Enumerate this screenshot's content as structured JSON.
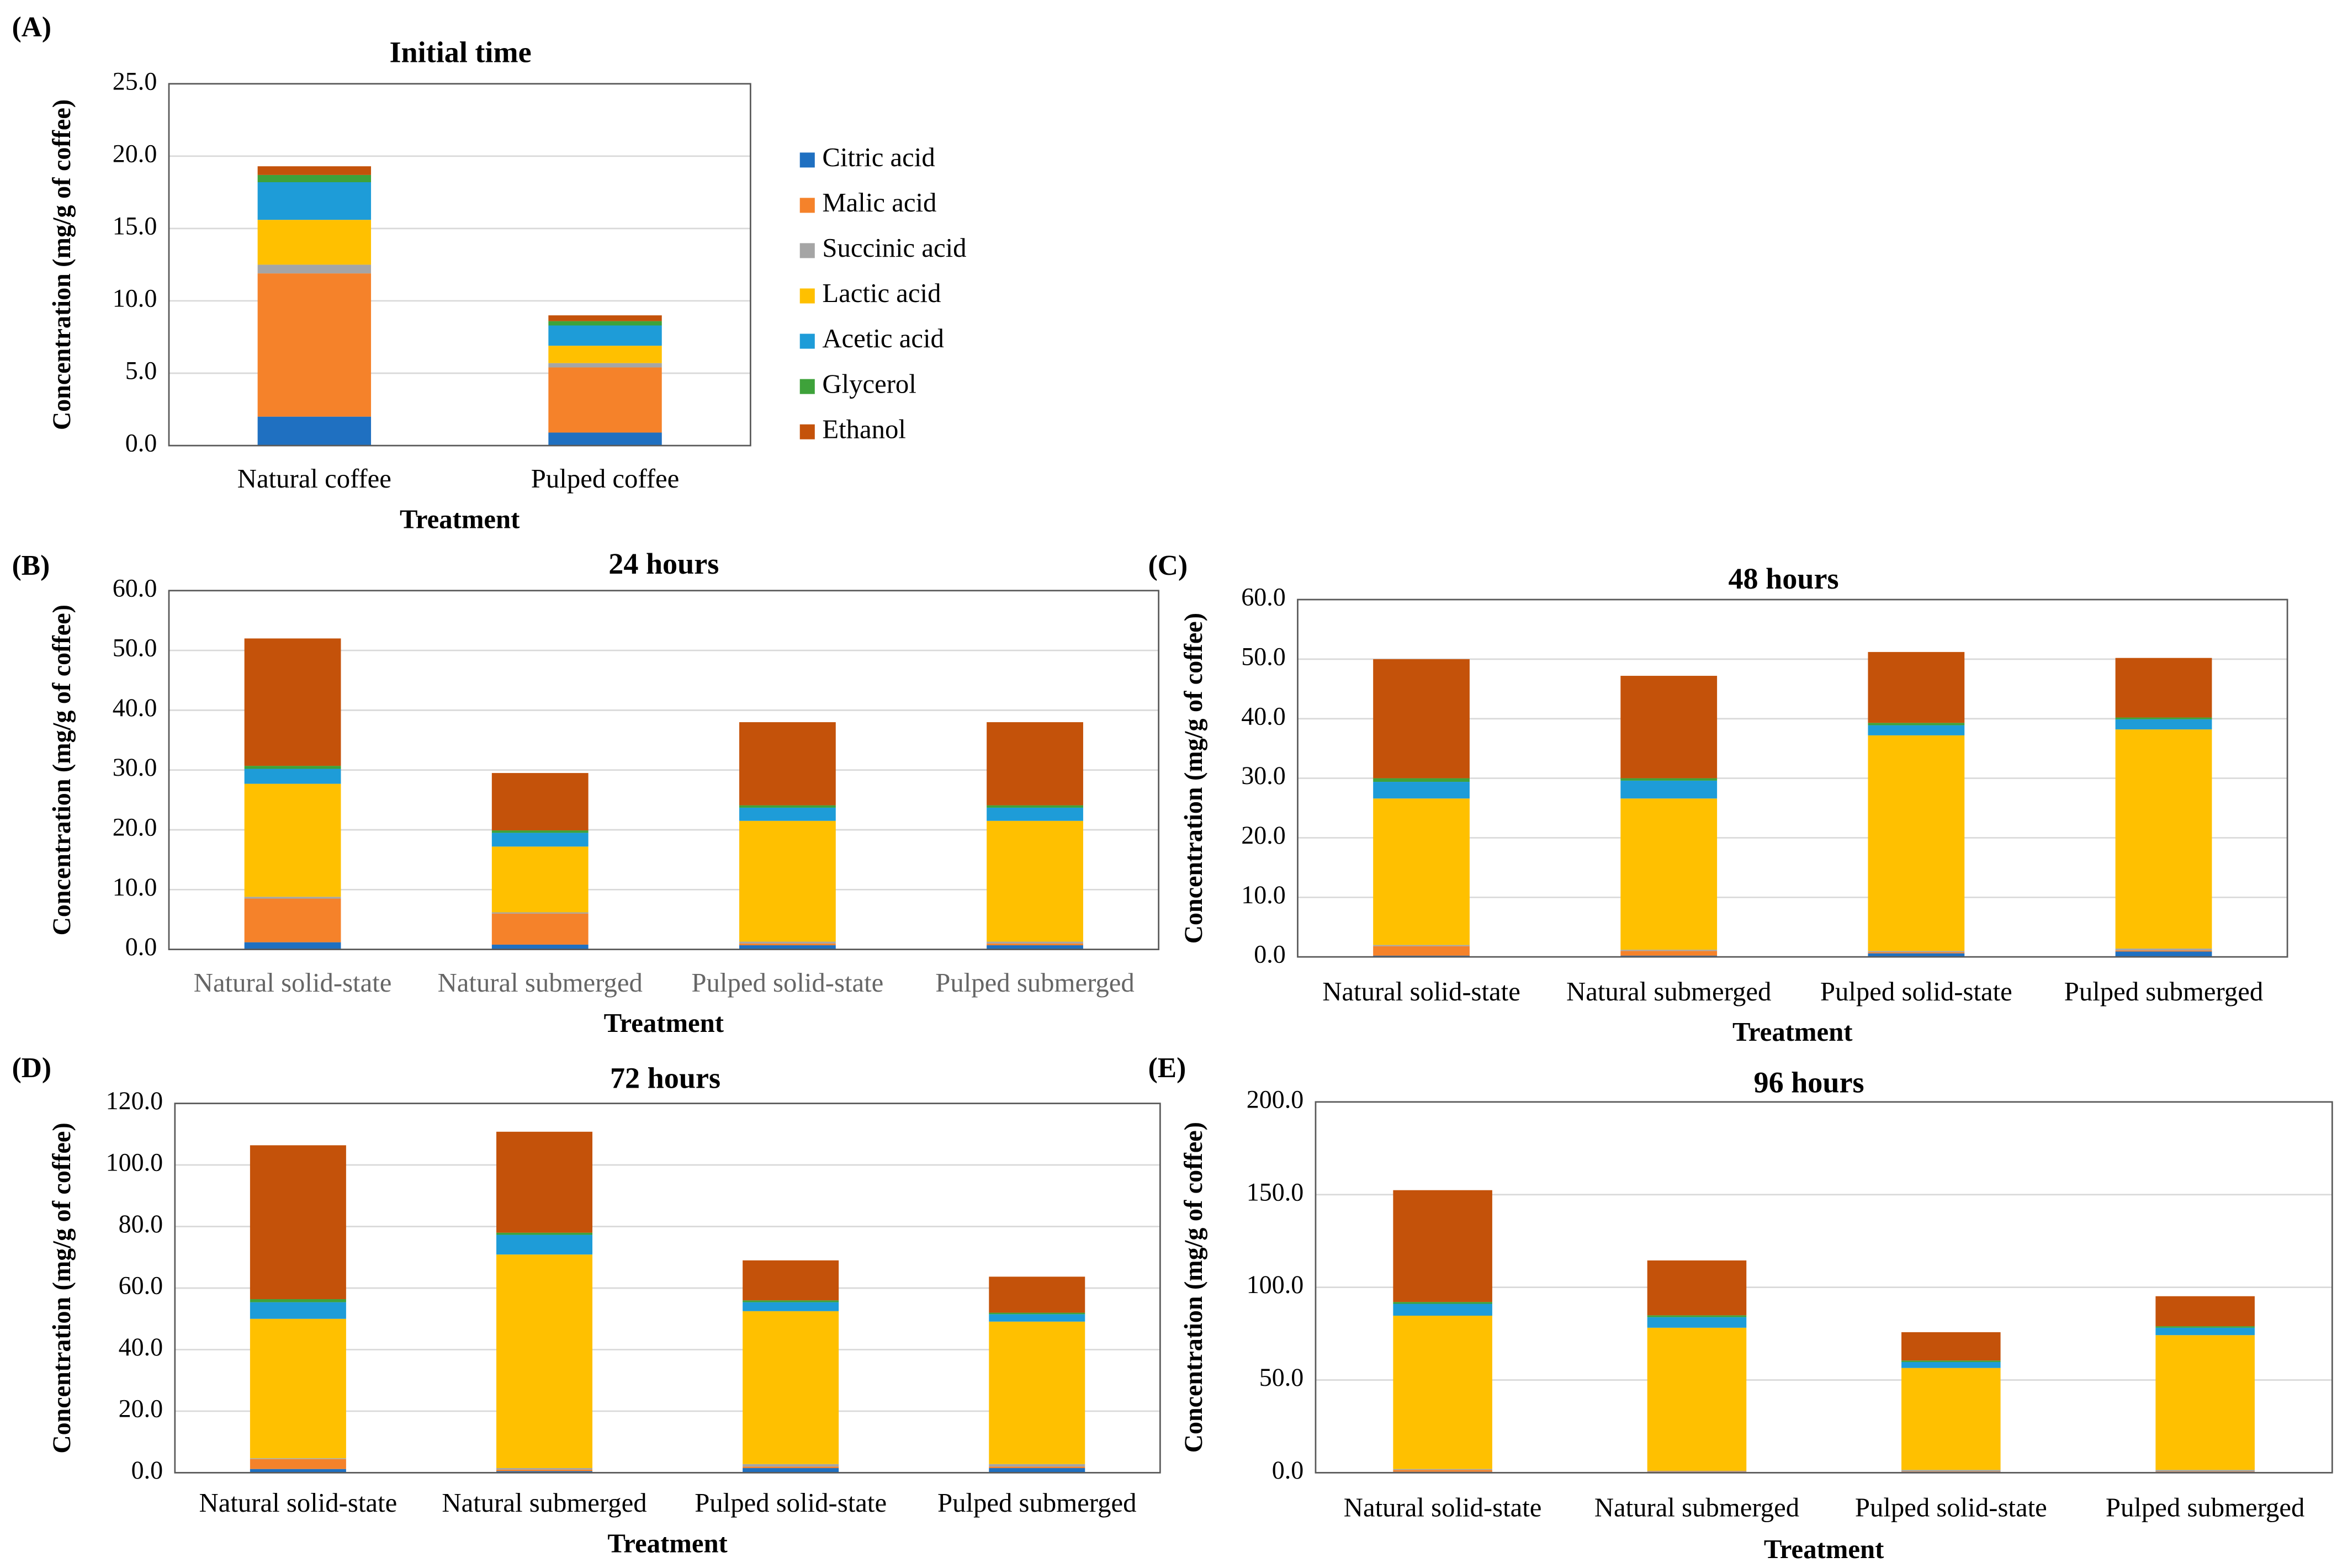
{
  "chart_data": [
    {
      "type": "bar",
      "stacked": true,
      "panel": "(A)",
      "title": "Initial time",
      "y_label": "Concentration (mg/g of coffee)",
      "x_label": "Treatment",
      "categories": [
        "Natural coffee",
        "Pulped coffee"
      ],
      "series": [
        {
          "name": "Citric acid",
          "color": "#1f70c1",
          "values": [
            2.0,
            0.9
          ]
        },
        {
          "name": "Malic acid",
          "color": "#f5822a",
          "values": [
            9.9,
            4.5
          ]
        },
        {
          "name": "Succinic acid",
          "color": "#a5a5a5",
          "values": [
            0.6,
            0.3
          ]
        },
        {
          "name": "Lactic acid",
          "color": "#ffc000",
          "values": [
            3.1,
            1.2
          ]
        },
        {
          "name": "Acetic acid",
          "color": "#1e9cd8",
          "values": [
            2.6,
            1.4
          ]
        },
        {
          "name": "Glycerol",
          "color": "#3ea23a",
          "values": [
            0.5,
            0.3
          ]
        },
        {
          "name": "Ethanol",
          "color": "#c4520a",
          "values": [
            0.6,
            0.4
          ]
        }
      ],
      "ylim": [
        0,
        25
      ],
      "yticks": [
        {
          "value": 0,
          "label": "0.0"
        },
        {
          "value": 5,
          "label": "5.0"
        },
        {
          "value": 10,
          "label": "10.0"
        },
        {
          "value": 15,
          "label": "15.0"
        },
        {
          "value": 20,
          "label": "20.0"
        },
        {
          "value": 25,
          "label": "25.0"
        }
      ],
      "grid": true,
      "legend": "right"
    },
    {
      "type": "bar",
      "stacked": true,
      "panel": "(B)",
      "title": "24 hours",
      "y_label": "Concentration (mg/g of coffee)",
      "x_label": "Treatment",
      "categories": [
        "Natural solid-state",
        "Natural submerged",
        "Pulped solid-state",
        "Pulped submerged"
      ],
      "series": [
        {
          "color": "#1f70c1",
          "values": [
            1.2,
            0.8,
            0.7,
            0.7
          ]
        },
        {
          "color": "#f5822a",
          "values": [
            7.3,
            5.2,
            0.3,
            0.3
          ]
        },
        {
          "color": "#a5a5a5",
          "values": [
            0.3,
            0.2,
            0.3,
            0.3
          ]
        },
        {
          "color": "#ffc000",
          "values": [
            18.9,
            11.0,
            20.2,
            20.2
          ]
        },
        {
          "color": "#1e9cd8",
          "values": [
            2.5,
            2.3,
            2.2,
            2.2
          ]
        },
        {
          "color": "#3ea23a",
          "values": [
            0.5,
            0.4,
            0.4,
            0.4
          ]
        },
        {
          "color": "#c4520a",
          "values": [
            21.3,
            9.6,
            13.9,
            13.9
          ]
        }
      ],
      "ylim": [
        0,
        60
      ],
      "yticks": [
        {
          "value": 0,
          "label": "0.0"
        },
        {
          "value": 10,
          "label": "10.0"
        },
        {
          "value": 20,
          "label": "20.0"
        },
        {
          "value": 30,
          "label": "30.0"
        },
        {
          "value": 40,
          "label": "40.0"
        },
        {
          "value": 50,
          "label": "50.0"
        },
        {
          "value": 60,
          "label": "60.0"
        }
      ],
      "grid": true
    },
    {
      "type": "bar",
      "stacked": true,
      "panel": "(C)",
      "title": "48 hours",
      "y_label": "Concentration (mg/g of coffee)",
      "x_label": "Treatment",
      "categories": [
        "Natural solid-state",
        "Natural submerged",
        "Pulped solid-state",
        "Pulped submerged"
      ],
      "series": [
        {
          "color": "#1f70c1",
          "values": [
            0.2,
            0.2,
            0.6,
            0.9
          ]
        },
        {
          "color": "#f5822a",
          "values": [
            1.6,
            0.8,
            0.2,
            0.2
          ]
        },
        {
          "color": "#a5a5a5",
          "values": [
            0.2,
            0.2,
            0.2,
            0.3
          ]
        },
        {
          "color": "#ffc000",
          "values": [
            24.6,
            25.4,
            36.2,
            36.8
          ]
        },
        {
          "color": "#1e9cd8",
          "values": [
            2.8,
            3.0,
            1.7,
            1.7
          ]
        },
        {
          "color": "#3ea23a",
          "values": [
            0.6,
            0.4,
            0.4,
            0.3
          ]
        },
        {
          "color": "#c4520a",
          "values": [
            20.0,
            17.2,
            11.9,
            10.0
          ]
        }
      ],
      "ylim": [
        0,
        60
      ],
      "yticks": [
        {
          "value": 0,
          "label": "0.0"
        },
        {
          "value": 10,
          "label": "10.0"
        },
        {
          "value": 20,
          "label": "20.0"
        },
        {
          "value": 30,
          "label": "30.0"
        },
        {
          "value": 40,
          "label": "40.0"
        },
        {
          "value": 50,
          "label": "50.0"
        },
        {
          "value": 60,
          "label": "60.0"
        }
      ],
      "grid": true
    },
    {
      "type": "bar",
      "stacked": true,
      "panel": "(D)",
      "title": "72 hours",
      "y_label": "Concentration (mg/g of coffee)",
      "x_label": "Treatment",
      "categories": [
        "Natural solid-state",
        "Natural submerged",
        "Pulped solid-state",
        "Pulped submerged"
      ],
      "series": [
        {
          "color": "#1f70c1",
          "values": [
            1.2,
            0.5,
            1.5,
            1.5
          ]
        },
        {
          "color": "#f5822a",
          "values": [
            3.2,
            0.5,
            0.5,
            0.5
          ]
        },
        {
          "color": "#a5a5a5",
          "values": [
            0.3,
            0.5,
            0.8,
            0.8
          ]
        },
        {
          "color": "#ffc000",
          "values": [
            45.3,
            69.4,
            49.7,
            46.3
          ]
        },
        {
          "color": "#1e9cd8",
          "values": [
            5.4,
            6.4,
            2.9,
            2.4
          ]
        },
        {
          "color": "#3ea23a",
          "values": [
            1.0,
            0.7,
            0.6,
            0.5
          ]
        },
        {
          "color": "#c4520a",
          "values": [
            50.0,
            32.8,
            13.0,
            11.7
          ]
        }
      ],
      "ylim": [
        0,
        120
      ],
      "yticks": [
        {
          "value": 0,
          "label": "0.0"
        },
        {
          "value": 20,
          "label": "20.0"
        },
        {
          "value": 40,
          "label": "40.0"
        },
        {
          "value": 60,
          "label": "60.0"
        },
        {
          "value": 80,
          "label": "80.0"
        },
        {
          "value": 100,
          "label": "100.0"
        },
        {
          "value": 120,
          "label": "120.0"
        }
      ],
      "grid": true
    },
    {
      "type": "bar",
      "stacked": true,
      "panel": "(E)",
      "title": "96 hours",
      "y_label": "Concentration (mg/g of coffee)",
      "x_label": "Treatment",
      "categories": [
        "Natural solid-state",
        "Natural submerged",
        "Pulped solid-state",
        "Pulped submerged"
      ],
      "series": [
        {
          "color": "#1f70c1",
          "values": [
            0.5,
            0.3,
            0.5,
            0.5
          ]
        },
        {
          "color": "#f5822a",
          "values": [
            1.0,
            0.3,
            0.2,
            0.2
          ]
        },
        {
          "color": "#a5a5a5",
          "values": [
            0.5,
            0.4,
            0.8,
            0.8
          ]
        },
        {
          "color": "#ffc000",
          "values": [
            82.7,
            77.2,
            55.0,
            72.7
          ]
        },
        {
          "color": "#1e9cd8",
          "values": [
            6.4,
            5.7,
            3.2,
            4.0
          ]
        },
        {
          "color": "#3ea23a",
          "values": [
            1.0,
            1.0,
            0.8,
            0.8
          ]
        },
        {
          "color": "#c4520a",
          "values": [
            60.3,
            29.6,
            15.3,
            16.2
          ]
        }
      ],
      "ylim": [
        0,
        200
      ],
      "yticks": [
        {
          "value": 0,
          "label": "0.0"
        },
        {
          "value": 50,
          "label": "50.0"
        },
        {
          "value": 100,
          "label": "100.0"
        },
        {
          "value": 150,
          "label": "150.0"
        },
        {
          "value": 200,
          "label": "200.0"
        }
      ],
      "grid": true
    }
  ]
}
